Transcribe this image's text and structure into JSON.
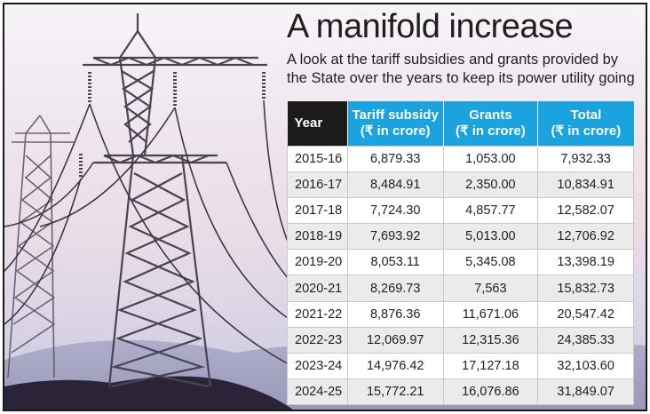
{
  "title": "A manifold increase",
  "subtitle": "A look at the tariff subsidies and grants provided by the State over the years to keep its power utility going",
  "colors": {
    "header_dark": "#1b1b1b",
    "header_accent": "#1aa3df",
    "row_alt": "#ebebeb"
  },
  "chart_data": {
    "type": "table",
    "columns": [
      "Year",
      "Tariff subsidy (₹ in crore)",
      "Grants (₹ in crore)",
      "Total (₹ in crore)"
    ],
    "header": {
      "year": "Year",
      "subsidy": [
        "Tariff subsidy",
        "(₹ in crore)"
      ],
      "grants": [
        "Grants",
        "(₹ in crore)"
      ],
      "total": [
        "Total",
        "(₹ in crore)"
      ]
    },
    "rows": [
      [
        "2015-16",
        "6,879.33",
        "1,053.00",
        "7,932.33"
      ],
      [
        "2016-17",
        "8,484.91",
        "2,350.00",
        "10,834.91"
      ],
      [
        "2017-18",
        "7,724.30",
        "4,857.77",
        "12,582.07"
      ],
      [
        "2018-19",
        "7,693.92",
        "5,013.00",
        "12,706.92"
      ],
      [
        "2019-20",
        "8,053.11",
        "5,345.08",
        "13,398.19"
      ],
      [
        "2020-21",
        "8,269.73",
        "7,563",
        "15,832.73"
      ],
      [
        "2021-22",
        "8,876.36",
        "11,671.06",
        "20,547.42"
      ],
      [
        "2022-23",
        "12,069.97",
        "12,315.36",
        "24,385.33"
      ],
      [
        "2023-24",
        "14,976.42",
        "17,127.18",
        "32,103.60"
      ],
      [
        "2024-25",
        "15,772.21",
        "16,076.86",
        "31,849.07"
      ]
    ]
  }
}
